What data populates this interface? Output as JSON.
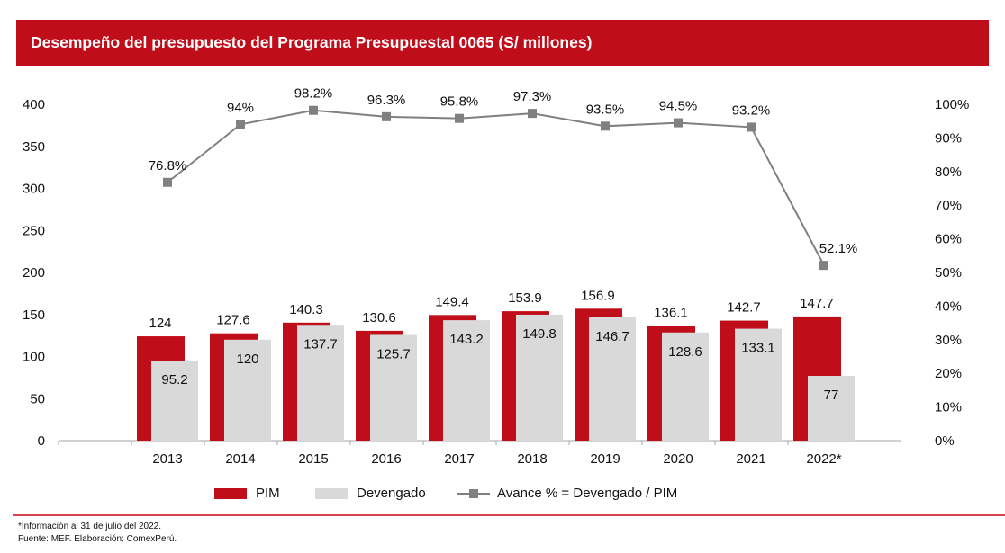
{
  "title": "Desempeño del presupuesto del Programa Presupuestal 0065 (S/ millones)",
  "chart_data": {
    "type": "bar+line",
    "categories": [
      "2013",
      "2014",
      "2015",
      "2016",
      "2017",
      "2018",
      "2019",
      "2020",
      "2021",
      "2022*"
    ],
    "series": [
      {
        "name": "PIM",
        "type": "bar",
        "axis": "left",
        "color": "#c00d1a",
        "values": [
          124,
          127.6,
          140.3,
          130.6,
          149.4,
          153.9,
          156.9,
          136.1,
          142.7,
          147.7
        ],
        "labels": [
          "124",
          "127.6",
          "140.3",
          "130.6",
          "149.4",
          "153.9",
          "156.9",
          "136.1",
          "142.7",
          "147.7"
        ]
      },
      {
        "name": "Devengado",
        "type": "bar",
        "axis": "left",
        "color": "#d9d9d9",
        "values": [
          95.2,
          120,
          137.7,
          125.7,
          143.2,
          149.8,
          146.7,
          128.6,
          133.1,
          77
        ],
        "labels": [
          "95.2",
          "120",
          "137.7",
          "125.7",
          "143.2",
          "149.8",
          "146.7",
          "128.6",
          "133.1",
          "77"
        ]
      },
      {
        "name": "Avance % = Devengado / PIM",
        "type": "line",
        "axis": "right",
        "color": "#808080",
        "values": [
          76.8,
          94,
          98.2,
          96.3,
          95.8,
          97.3,
          93.5,
          94.5,
          93.2,
          52.1
        ],
        "labels": [
          "76.8%",
          "94%",
          "98.2%",
          "96.3%",
          "95.8%",
          "97.3%",
          "93.5%",
          "94.5%",
          "93.2%",
          "52.1%"
        ]
      }
    ],
    "ylim": [
      0,
      400
    ],
    "yticks": [
      "0",
      "50",
      "100",
      "150",
      "200",
      "250",
      "300",
      "350",
      "400"
    ],
    "y2lim": [
      0,
      100
    ],
    "y2ticks": [
      "0%",
      "10%",
      "20%",
      "30%",
      "40%",
      "50%",
      "60%",
      "70%",
      "80%",
      "90%",
      "100%"
    ],
    "legend": "bottom",
    "grid": false
  },
  "footnotes": [
    "*Información al 31 de julio del 2022.",
    "Fuente: MEF. Elaboración: ComexPerú."
  ]
}
